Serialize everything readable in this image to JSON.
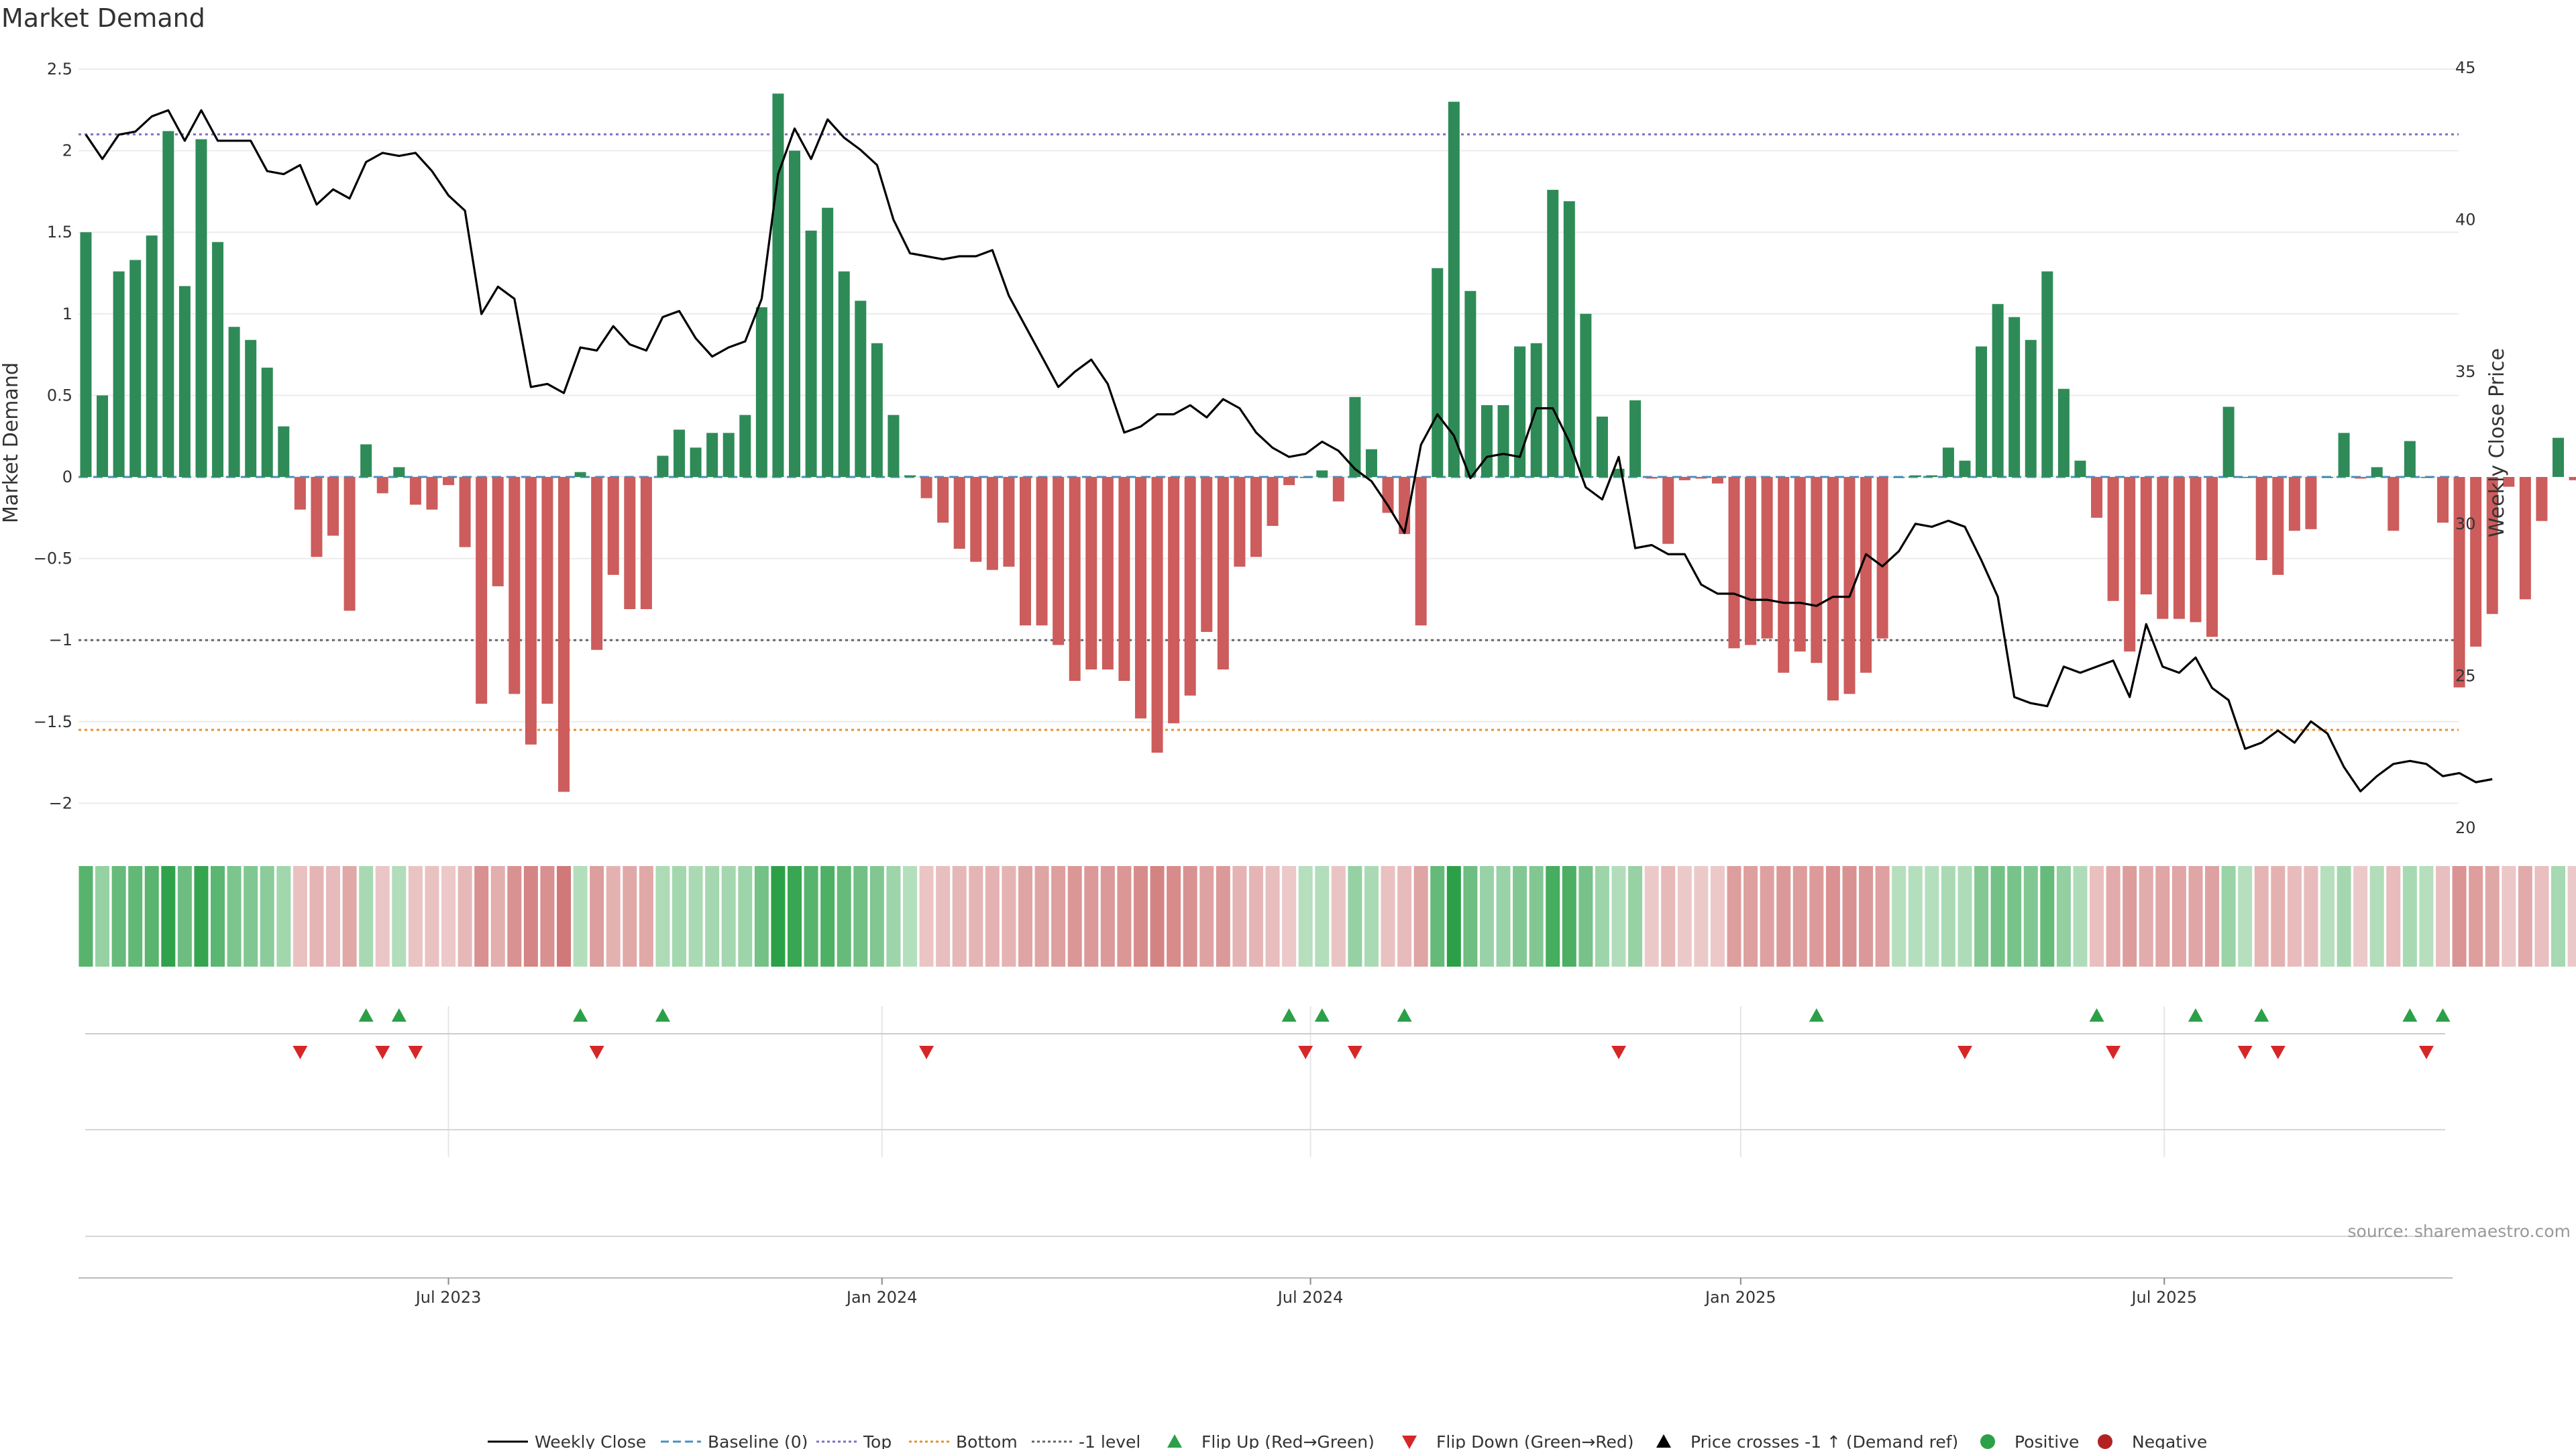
{
  "chart_data": {
    "type": "bar",
    "title": "Market Demand",
    "ylabel_left": "Market Demand",
    "ylabel_right": "Weekly Close Price",
    "ylim_left": [
      -2.2,
      2.6
    ],
    "ylim_right": [
      20,
      45
    ],
    "yticks_left": [
      2.5,
      2,
      1.5,
      1,
      0.5,
      0,
      -0.5,
      -1,
      -1.5,
      -2
    ],
    "yticks_left_labels": [
      "2.5",
      "2",
      "1.5",
      "1",
      "0.5",
      "0",
      "−0.5",
      "−1",
      "−1.5",
      "−2"
    ],
    "yticks_right": [
      45,
      40,
      35,
      30,
      25,
      20
    ],
    "yticks_right_labels": [
      "45",
      "40",
      "35",
      "30",
      "25",
      "20"
    ],
    "x_ticks": [
      {
        "label": "Jul 2023",
        "week": 22
      },
      {
        "label": "Jan 2024",
        "week": 48.3
      },
      {
        "label": "Jul 2024",
        "week": 74.3
      },
      {
        "label": "Jan 2025",
        "week": 100.4
      },
      {
        "label": "Jul 2025",
        "week": 126.1
      }
    ],
    "reference_lines": [
      {
        "name": "Baseline (0)",
        "value": 0,
        "color": "#4a8fc2"
      },
      {
        "name": "Top",
        "value": 2.1,
        "color": "#7b6fc4"
      },
      {
        "name": "Bottom",
        "value": -1.55,
        "color": "#e8902b"
      },
      {
        "name": "-1 level",
        "value": -1.0,
        "color": "#666666"
      }
    ],
    "series": [
      {
        "name": "Market Demand",
        "kind": "bar",
        "positive_color": "#2e8b57",
        "negative_color": "#cd5c5c",
        "values": [
          1.5,
          0.5,
          1.26,
          1.33,
          1.48,
          2.12,
          1.17,
          2.07,
          1.44,
          0.92,
          0.84,
          0.67,
          0.31,
          -0.2,
          -0.49,
          -0.36,
          -0.82,
          0.2,
          -0.1,
          0.06,
          -0.17,
          -0.2,
          -0.05,
          -0.43,
          -1.39,
          -0.67,
          -1.33,
          -1.64,
          -1.39,
          -1.93,
          0.03,
          -1.06,
          -0.6,
          -0.81,
          -0.81,
          0.13,
          0.29,
          0.18,
          0.27,
          0.27,
          0.38,
          1.04,
          2.35,
          2.0,
          1.51,
          1.65,
          1.26,
          1.08,
          0.82,
          0.38,
          0.01,
          -0.13,
          -0.28,
          -0.44,
          -0.52,
          -0.57,
          -0.55,
          -0.91,
          -0.91,
          -1.03,
          -1.25,
          -1.18,
          -1.18,
          -1.25,
          -1.48,
          -1.69,
          -1.51,
          -1.34,
          -0.95,
          -1.18,
          -0.55,
          -0.49,
          -0.3,
          -0.05,
          0.0,
          0.04,
          -0.15,
          0.49,
          0.17,
          -0.22,
          -0.35,
          -0.91,
          1.28,
          2.3,
          1.14,
          0.44,
          0.44,
          0.8,
          0.82,
          1.76,
          1.69,
          1.0,
          0.37,
          0.05,
          0.47,
          -0.01,
          -0.41,
          -0.02,
          -0.01,
          -0.04,
          -1.05,
          -1.03,
          -0.99,
          -1.2,
          -1.07,
          -1.14,
          -1.37,
          -1.33,
          -1.2,
          -0.99,
          0.0,
          0.01,
          0.01,
          0.18,
          0.1,
          0.8,
          1.06,
          0.98,
          0.84,
          1.26,
          0.54,
          0.1,
          -0.25,
          -0.76,
          -1.07,
          -0.72,
          -0.87,
          -0.87,
          -0.89,
          -0.98,
          0.43,
          0.0,
          -0.51,
          -0.6,
          -0.33,
          -0.32,
          0.0,
          0.27,
          -0.01,
          0.06,
          -0.33,
          0.22,
          0.0,
          -0.28,
          -1.29,
          -1.04,
          -0.84,
          -0.06,
          -0.75,
          -0.27,
          0.24,
          -0.02,
          0.03
        ]
      },
      {
        "name": "Weekly Close",
        "kind": "line",
        "color": "#000000",
        "values": [
          42.8,
          42.0,
          42.8,
          42.9,
          43.4,
          43.6,
          42.6,
          43.6,
          42.6,
          42.6,
          42.6,
          41.6,
          41.5,
          41.8,
          40.5,
          41.0,
          40.7,
          41.9,
          42.2,
          42.1,
          42.2,
          41.6,
          40.8,
          40.3,
          36.9,
          37.8,
          37.4,
          34.5,
          34.6,
          34.3,
          35.8,
          35.7,
          36.5,
          35.9,
          35.7,
          36.8,
          37.0,
          36.1,
          35.5,
          35.8,
          36.0,
          37.4,
          41.5,
          43.0,
          42.0,
          43.3,
          42.7,
          42.3,
          41.8,
          40.0,
          38.9,
          38.8,
          38.7,
          38.8,
          38.8,
          39.0,
          37.5,
          36.5,
          35.5,
          34.5,
          35.0,
          35.4,
          34.6,
          33.0,
          33.2,
          33.6,
          33.6,
          33.9,
          33.5,
          34.1,
          33.8,
          33.0,
          32.5,
          32.2,
          32.3,
          32.7,
          32.4,
          31.8,
          31.4,
          30.6,
          29.7,
          32.6,
          33.6,
          32.9,
          31.5,
          32.2,
          32.3,
          32.2,
          33.8,
          33.8,
          32.7,
          31.2,
          30.8,
          32.2,
          29.2,
          29.3,
          29.0,
          29.0,
          28.0,
          27.7,
          27.7,
          27.5,
          27.5,
          27.4,
          27.4,
          27.3,
          27.6,
          27.6,
          29.0,
          28.6,
          29.1,
          30.0,
          29.9,
          30.1,
          29.9,
          28.8,
          27.6,
          24.3,
          24.1,
          24.0,
          25.3,
          25.1,
          25.3,
          25.5,
          24.3,
          26.7,
          25.3,
          25.1,
          25.6,
          24.6,
          24.2,
          22.6,
          22.8,
          23.2,
          22.8,
          23.5,
          23.1,
          22.0,
          21.2,
          21.7,
          22.1,
          22.2,
          22.1,
          21.7,
          21.8,
          21.5,
          21.6
        ]
      },
      {
        "name": "Demand Heat Strip",
        "kind": "heatmap_strip",
        "values": "same as Market Demand"
      }
    ],
    "flip_up_weeks": [
      17,
      19,
      30,
      35,
      73,
      75,
      80,
      105,
      122,
      128,
      132,
      141,
      143
    ],
    "flip_down_weeks": [
      13,
      18,
      20,
      31,
      51,
      74,
      77,
      93,
      114,
      123,
      131,
      133,
      142
    ],
    "legend": [
      {
        "label": "Weekly Close",
        "marker": "solid-line",
        "color": "#000000"
      },
      {
        "label": "Baseline (0)",
        "marker": "dashed-line",
        "color": "#4a8fc2"
      },
      {
        "label": "Top",
        "marker": "dotted-line",
        "color": "#7b6fc4"
      },
      {
        "label": "Bottom",
        "marker": "dotted-line",
        "color": "#e8902b"
      },
      {
        "label": "-1 level",
        "marker": "dotted-line",
        "color": "#666666"
      },
      {
        "label": "Flip Up (Red→Green)",
        "marker": "triangle-up",
        "color": "#2ca048"
      },
      {
        "label": "Flip Down (Green→Red)",
        "marker": "triangle-down",
        "color": "#d62728"
      },
      {
        "label": "Price crosses -1 ↑ (Demand ref)",
        "marker": "triangle-up",
        "color": "#000000"
      },
      {
        "label": "Positive",
        "marker": "circle",
        "color": "#2ca048"
      },
      {
        "label": "Negative",
        "marker": "circle",
        "color": "#b22222"
      }
    ],
    "legend_position": "bottom-center"
  },
  "source": "source: sharemaestro.com"
}
